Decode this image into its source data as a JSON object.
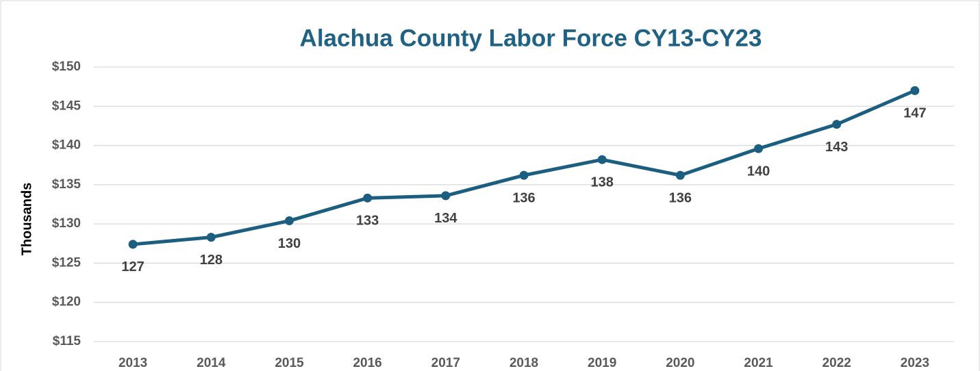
{
  "chart_data": {
    "type": "line",
    "title": "Alachua County Labor Force CY13-CY23",
    "y_axis_label": "Thousands",
    "categories": [
      "2013",
      "2014",
      "2015",
      "2016",
      "2017",
      "2018",
      "2019",
      "2020",
      "2021",
      "2022",
      "2023"
    ],
    "series": [
      {
        "name": "Labor Force",
        "color": "#1b5e80",
        "values": [
          127.4,
          128.3,
          130.4,
          133.3,
          133.6,
          136.2,
          138.2,
          136.2,
          139.6,
          142.7,
          147.0
        ],
        "value_labels": [
          "127",
          "128",
          "130",
          "133",
          "134",
          "136",
          "138",
          "136",
          "140",
          "143",
          "147"
        ]
      }
    ],
    "ylim": [
      115,
      150
    ],
    "yticks": [
      {
        "value": 115,
        "label": "$115"
      },
      {
        "value": 120,
        "label": "$120"
      },
      {
        "value": 125,
        "label": "$125"
      },
      {
        "value": 130,
        "label": "$130"
      },
      {
        "value": 135,
        "label": "$135"
      },
      {
        "value": 140,
        "label": "$140"
      },
      {
        "value": 145,
        "label": "$145"
      },
      {
        "value": 150,
        "label": "$150"
      }
    ],
    "grid": true
  }
}
